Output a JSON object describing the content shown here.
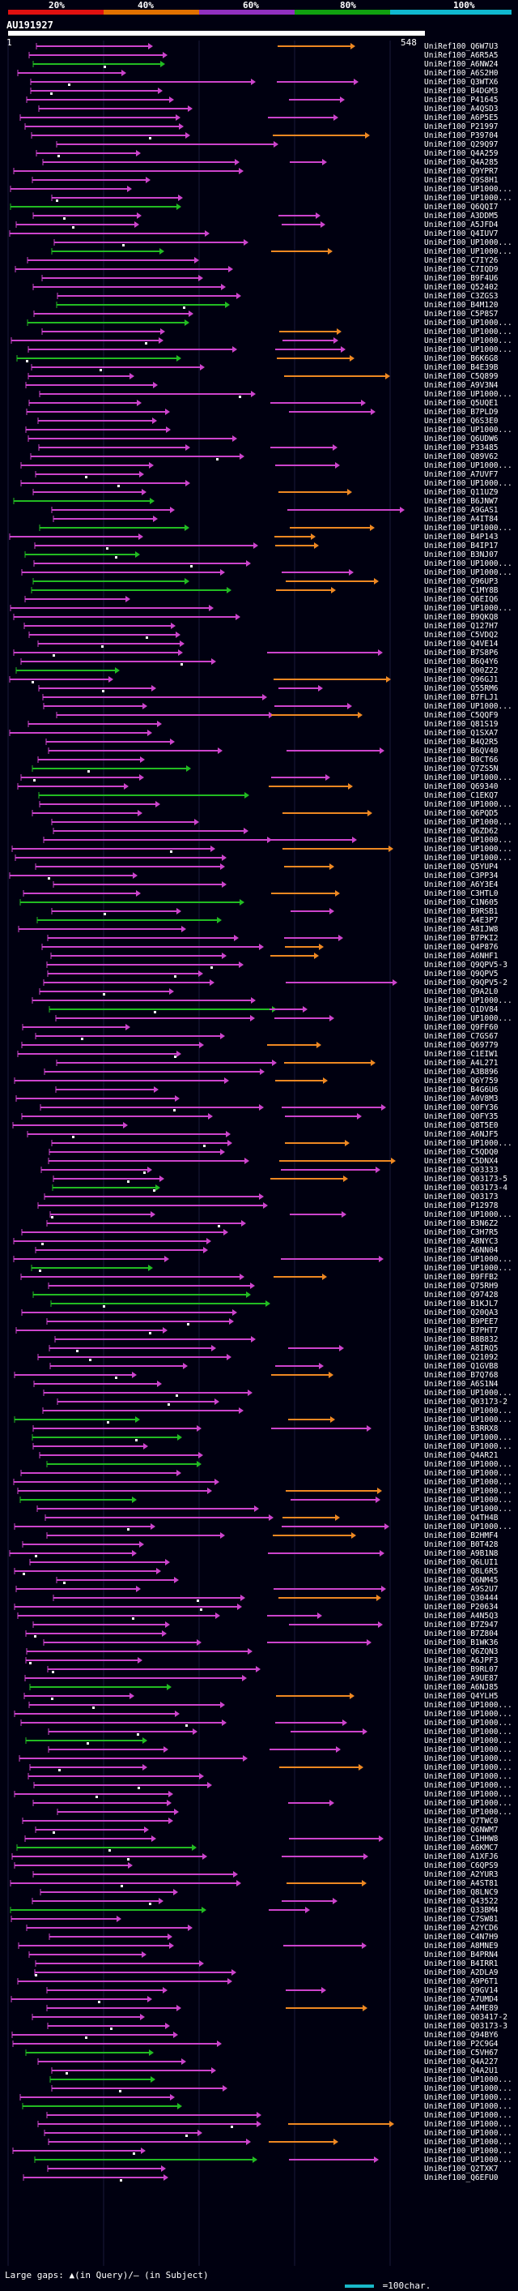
{
  "scale": {
    "percent_labels": [
      "20%",
      "40%",
      "60%",
      "80%",
      "100%"
    ],
    "bands": [
      {
        "color": "#e01010"
      },
      {
        "color": "#e07000"
      },
      {
        "color": "#9030c0"
      },
      {
        "color": "#10a010"
      },
      {
        "color": "#10b8d0"
      }
    ]
  },
  "query": {
    "name": "AU191927",
    "start": "1",
    "end": "548"
  },
  "colors": {
    "match_high": "#cc44cc",
    "match_mid": "#22bb22",
    "match_low": "#ee8822",
    "match_top": "#22cccc",
    "gap": "#ffffff",
    "background": "#000010"
  },
  "hits": [
    "UniRef100_Q6W7U3",
    "UniRef100_A6R5A5",
    "UniRef100_A6NW24",
    "UniRef100_A6S2H0",
    "UniRef100_Q3WTX6",
    "UniRef100_B4DGM3",
    "UniRef100_P41645",
    "UniRef100_A4QSD3",
    "UniRef100_A6P5E5",
    "UniRef100_P21997",
    "UniRef100_P39704",
    "UniRef100_Q29Q97",
    "UniRef100_Q4A259",
    "UniRef100_Q4A285",
    "UniRef100_Q9YPR7",
    "UniRef100_Q9S8H1",
    "UniRef100_UP1000...",
    "UniRef100_UP1000...",
    "UniRef100_Q6QQI7",
    "UniRef100_A3DDM5",
    "UniRef100_A5JFD4",
    "UniRef100_Q4IUV7",
    "UniRef100_UP1000...",
    "UniRef100_UP1000...",
    "UniRef100_C7IY26",
    "UniRef100_C7IQD9",
    "UniRef100_B9F4U6",
    "UniRef100_Q52402",
    "UniRef100_C3ZGS3",
    "UniRef100_B4M120",
    "UniRef100_C5P8S7",
    "UniRef100_UP1000...",
    "UniRef100_UP1000...",
    "UniRef100_UP1000...",
    "UniRef100_UP1000...",
    "UniRef100_B6K6G8",
    "UniRef100_B4E39B",
    "UniRef100_C5Q899",
    "UniRef100_A9V3N4",
    "UniRef100_UP1000...",
    "UniRef100_Q5UQE1",
    "UniRef100_B7PLD9",
    "UniRef100_Q6S3E0",
    "UniRef100_UP1000...",
    "UniRef100_Q6UDW6",
    "UniRef100_P33485",
    "UniRef100_Q89V62",
    "UniRef100_UP1000...",
    "UniRef100_A7UVF7",
    "UniRef100_UP1000...",
    "UniRef100_Q11UZ9",
    "UniRef100_B6JNW7",
    "UniRef100_A9GAS1",
    "UniRef100_A4IT84",
    "UniRef100_UP1000...",
    "UniRef100_B4P143",
    "UniRef100_B4IP17",
    "UniRef100_B3NJ07",
    "UniRef100_UP1000...",
    "UniRef100_UP1000...",
    "UniRef100_Q96UP3",
    "UniRef100_C1MY8B",
    "UniRef100_Q6EIQ6",
    "UniRef100_UP1000...",
    "UniRef100_B9QKQ8",
    "UniRef100_Q127H7",
    "UniRef100_C5VDQ2",
    "UniRef100_Q4VE14",
    "UniRef100_B7S8P6",
    "UniRef100_B6Q4Y6",
    "UniRef100_Q00Z22",
    "UniRef100_Q96GJ1",
    "UniRef100_Q55RM6",
    "UniRef100_B7FLJ1",
    "UniRef100_UP1000...",
    "UniRef100_C5QQF9",
    "UniRef100_Q81S19",
    "UniRef100_Q1SXA7",
    "UniRef100_B4Q2R5",
    "UniRef100_B6QV40",
    "UniRef100_B0CT66",
    "UniRef100_Q7ZS5N",
    "UniRef100_UP1000...",
    "UniRef100_Q69340",
    "UniRef100_C1EKQ7",
    "UniRef100_UP1000...",
    "UniRef100_Q6PQD5",
    "UniRef100_UP1000...",
    "UniRef100_Q6ZD62",
    "UniRef100_UP1000...",
    "UniRef100_UP1000...",
    "UniRef100_UP1000...",
    "UniRef100_Q5YUP4",
    "UniRef100_C3PP34",
    "UniRef100_A6Y3E4",
    "UniRef100_C3HTL0",
    "UniRef100_C1N605",
    "UniRef100_B9RSB1",
    "UniRef100_A4E3P7",
    "UniRef100_A8IJW8",
    "UniRef100_B7PKI2",
    "UniRef100_Q4P876",
    "UniRef100_A6NHF1",
    "UniRef100_Q9QPV5-3",
    "UniRef100_Q9QPV5",
    "UniRef100_Q9QPV5-2",
    "UniRef100_Q9A2L0",
    "UniRef100_UP1000...",
    "UniRef100_Q1DV84",
    "UniRef100_UP1000...",
    "UniRef100_Q9FF60",
    "UniRef100_C7GS67",
    "UniRef100_Q69779",
    "UniRef100_C1EIW1",
    "UniRef100_A4L271",
    "UniRef100_A3B896",
    "UniRef100_Q6Y759",
    "UniRef100_B4G6U6",
    "UniRef100_A0V8M3",
    "UniRef100_Q0FY36",
    "UniRef100_Q0FY35",
    "UniRef100_Q8T5E0",
    "UniRef100_A6NJF5",
    "UniRef100_UP1000...",
    "UniRef100_C5QDQ0",
    "UniRef100_C5DNX4",
    "UniRef100_Q03333",
    "UniRef100_Q03173-5",
    "UniRef100_Q03173-4",
    "UniRef100_Q03173",
    "UniRef100_P12978",
    "UniRef100_UP1000...",
    "UniRef100_B3N6Z2",
    "UniRef100_C3H7R5",
    "UniRef100_A8NYC3",
    "UniRef100_A6NN04",
    "UniRef100_UP1000...",
    "UniRef100_UP1000...",
    "UniRef100_B9FFB2",
    "UniRef100_Q75RH9",
    "UniRef100_Q97428",
    "UniRef100_B1KJL7",
    "UniRef100_Q20QA3",
    "UniRef100_B9PEE7",
    "UniRef100_B7PHT7",
    "UniRef100_B8B832",
    "UniRef100_A8IRQ5",
    "UniRef100_Q21092",
    "UniRef100_Q1GVB8",
    "UniRef100_B7Q768",
    "UniRef100_A6S1N4",
    "UniRef100_UP1000...",
    "UniRef100_Q03173-2",
    "UniRef100_UP1000...",
    "UniRef100_UP1000...",
    "UniRef100_B3RRX8",
    "UniRef100_UP1000...",
    "UniRef100_UP1000...",
    "UniRef100_Q4AR21",
    "UniRef100_UP1000...",
    "UniRef100_UP1000...",
    "UniRef100_UP1000...",
    "UniRef100_UP1000...",
    "UniRef100_UP1000...",
    "UniRef100_UP1000...",
    "UniRef100_Q4TH4B",
    "UniRef100_UP1000...",
    "UniRef100_B2HMF4",
    "UniRef100_B0T428",
    "UniRef100_A9B1N8",
    "UniRef100_Q6LUI1",
    "UniRef100_Q8L6R5",
    "UniRef100_Q6NM45",
    "UniRef100_A9S2U7",
    "UniRef100_Q30444",
    "UniRef100_P20634",
    "UniRef100_A4N5Q3",
    "UniRef100_B7Z947",
    "UniRef100_B7Z804",
    "UniRef100_B1WK36",
    "UniRef100_Q6ZQN3",
    "UniRef100_A6JPF3",
    "UniRef100_B9RL07",
    "UniRef100_A9UE87",
    "UniRef100_A6NJ85",
    "UniRef100_Q4YLH5",
    "UniRef100_UP1000...",
    "UniRef100_UP1000...",
    "UniRef100_UP1000...",
    "UniRef100_UP1000...",
    "UniRef100_UP1000...",
    "UniRef100_UP1000...",
    "UniRef100_UP1000...",
    "UniRef100_UP1000...",
    "UniRef100_UP1000...",
    "UniRef100_UP1000...",
    "UniRef100_UP1000...",
    "UniRef100_UP1000...",
    "UniRef100_UP1000...",
    "UniRef100_Q7TWC0",
    "UniRef100_Q6NWM7",
    "UniRef100_C1HHW8",
    "UniRef100_A6KMC7",
    "UniRef100_A1XFJ6",
    "UniRef100_C6QPS9",
    "UniRef100_A2YUR3",
    "UniRef100_A4ST81",
    "UniRef100_Q8LNC9",
    "UniRef100_Q43522",
    "UniRef100_Q33BM4",
    "UniRef100_C7SW81",
    "UniRef100_A2YCD6",
    "UniRef100_C4N7H9",
    "UniRef100_A8MNE9",
    "UniRef100_B4PRN4",
    "UniRef100_B4IRR1",
    "UniRef100_A2DLA9",
    "UniRef100_A9P6T1",
    "UniRef100_Q9GV14",
    "UniRef100_A7UMD4",
    "UniRef100_A4ME89",
    "UniRef100_Q03417-2",
    "UniRef100_Q03173-3",
    "UniRef100_Q94BY6",
    "UniRef100_P2C9G4",
    "UniRef100_C5VH67",
    "UniRef100_Q4A227",
    "UniRef100_Q4A2U1",
    "UniRef100_UP1000...",
    "UniRef100_UP1000...",
    "UniRef100_UP1000...",
    "UniRef100_UP1000...",
    "UniRef100_UP1000...",
    "UniRef100_UP1000...",
    "UniRef100_UP1000...",
    "UniRef100_UP1000...",
    "UniRef100_UP1000...",
    "UniRef100_UP1000...",
    "UniRef100_Q2TXK7",
    "UniRef100_Q6EFU0"
  ],
  "legend": {
    "large_gaps": "Large gaps: ▲(in Query)/— (in Subject)",
    "scale": "=100char."
  }
}
